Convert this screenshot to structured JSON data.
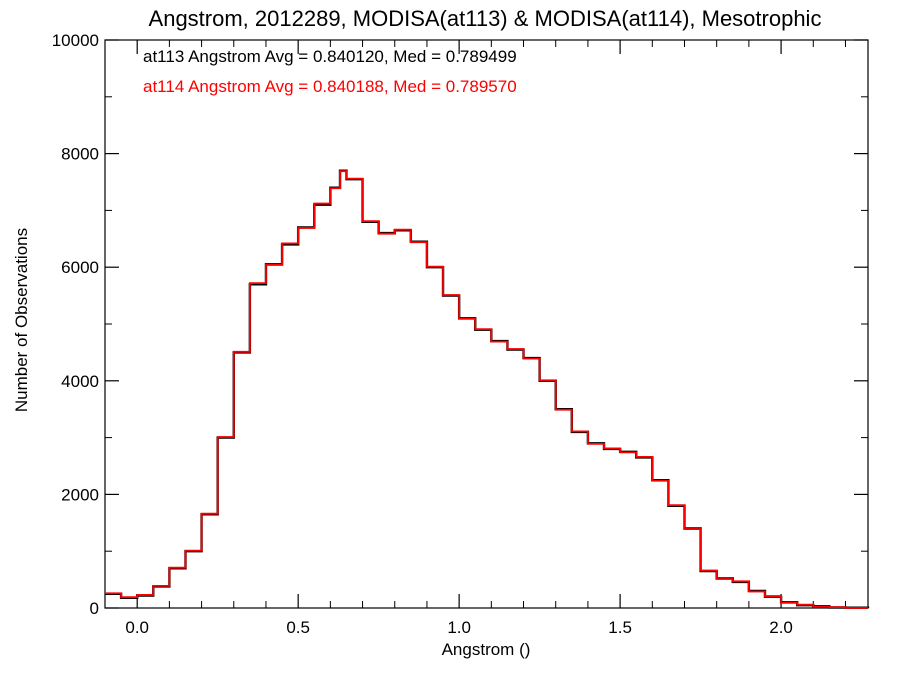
{
  "chart_data": {
    "type": "line",
    "title": "Angstrom, 2012289, MODISA(at113) & MODISA(at114), Mesotrophic",
    "xlabel": "Angstrom ()",
    "ylabel": "Number of Observations",
    "xlim": [
      -0.1,
      2.27
    ],
    "ylim": [
      0,
      10000
    ],
    "x_ticks": [
      0.0,
      0.5,
      1.0,
      1.5,
      2.0
    ],
    "x_tick_labels": [
      "0.0",
      "0.5",
      "1.0",
      "1.5",
      "2.0"
    ],
    "y_ticks": [
      0,
      2000,
      4000,
      6000,
      8000,
      10000
    ],
    "y_tick_labels": [
      "0",
      "2000",
      "4000",
      "6000",
      "8000",
      "10000"
    ],
    "grid": false,
    "annotations": [
      {
        "text": "at113 Angstrom Avg = 0.840120, Med = 0.789499",
        "color": "#000000"
      },
      {
        "text": "at114 Angstrom Avg = 0.840188, Med = 0.789570",
        "color": "#ff0000"
      }
    ],
    "series": [
      {
        "color": "#000000",
        "x": [
          -0.1,
          -0.05,
          0.0,
          0.05,
          0.1,
          0.15,
          0.2,
          0.25,
          0.3,
          0.35,
          0.4,
          0.45,
          0.5,
          0.55,
          0.6,
          0.63,
          0.65,
          0.7,
          0.75,
          0.8,
          0.85,
          0.9,
          0.95,
          1.0,
          1.05,
          1.1,
          1.15,
          1.2,
          1.25,
          1.3,
          1.35,
          1.4,
          1.45,
          1.5,
          1.55,
          1.6,
          1.65,
          1.7,
          1.75,
          1.8,
          1.85,
          1.9,
          1.95,
          2.0,
          2.05,
          2.1,
          2.15,
          2.2,
          2.27
        ],
        "y": [
          250,
          180,
          220,
          380,
          700,
          1000,
          1650,
          3000,
          4500,
          5700,
          6050,
          6400,
          6700,
          7100,
          7400,
          7700,
          7550,
          6800,
          6600,
          6650,
          6450,
          6000,
          5500,
          5100,
          4900,
          4700,
          4550,
          4400,
          4000,
          3500,
          3100,
          2900,
          2800,
          2750,
          2650,
          2250,
          1800,
          1400,
          650,
          520,
          460,
          300,
          200,
          100,
          50,
          30,
          10,
          5,
          0
        ]
      },
      {
        "color": "#ff0000",
        "x": [
          -0.1,
          -0.05,
          0.0,
          0.05,
          0.1,
          0.15,
          0.2,
          0.25,
          0.3,
          0.35,
          0.4,
          0.45,
          0.5,
          0.55,
          0.6,
          0.63,
          0.65,
          0.7,
          0.75,
          0.8,
          0.85,
          0.9,
          0.95,
          1.0,
          1.05,
          1.1,
          1.15,
          1.2,
          1.25,
          1.3,
          1.35,
          1.4,
          1.45,
          1.5,
          1.55,
          1.6,
          1.65,
          1.7,
          1.75,
          1.8,
          1.85,
          1.9,
          1.95,
          2.0,
          2.05,
          2.1,
          2.15,
          2.2,
          2.27
        ],
        "y": [
          260,
          190,
          230,
          390,
          710,
          1010,
          1660,
          3010,
          4510,
          5720,
          6040,
          6420,
          6690,
          7120,
          7390,
          7690,
          7560,
          6810,
          6590,
          6660,
          6440,
          6010,
          5510,
          5090,
          4910,
          4690,
          4560,
          4390,
          4010,
          3490,
          3110,
          2890,
          2810,
          2740,
          2660,
          2240,
          1810,
          1390,
          660,
          510,
          470,
          290,
          210,
          90,
          60,
          20,
          15,
          0,
          0
        ]
      }
    ]
  }
}
